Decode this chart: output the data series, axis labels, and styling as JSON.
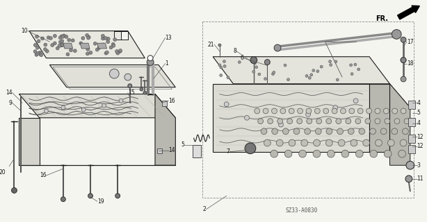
{
  "background_color": "#f5f5f0",
  "line_color": "#1a1a1a",
  "label_color": "#111111",
  "diagram_code": "SZ33-A0830",
  "fr_label": "FR.",
  "light_fill": "#e8e8e0",
  "mid_fill": "#d4d4cc",
  "dark_fill": "#b8b8b0",
  "dot_color": "#444444"
}
